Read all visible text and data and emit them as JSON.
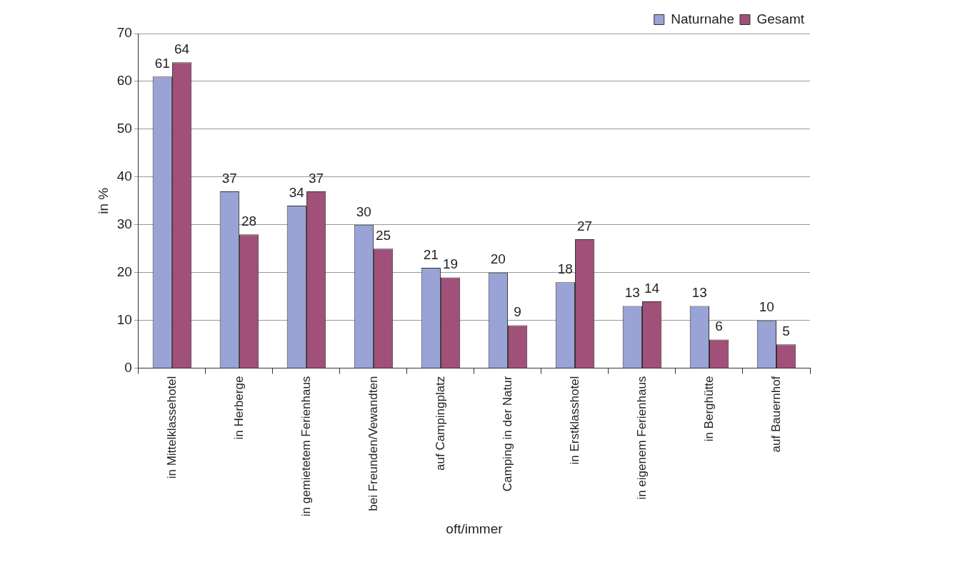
{
  "chart_data": {
    "type": "bar",
    "xlabel": "oft/immer",
    "ylabel": "in %",
    "categories": [
      "in Mittelklassehotel",
      "in Herberge",
      "in gemietetem Ferienhaus",
      "bei Freunden/Vewandten",
      "auf Campingplatz",
      "Camping in der Natur",
      "in Erstklasshotel",
      "in eigenem Ferienhaus",
      "in Berghütte",
      "auf Bauernhof"
    ],
    "series": [
      {
        "name": "Naturnahe",
        "color": "#99a3d5",
        "values": [
          61,
          37,
          34,
          30,
          21,
          20,
          18,
          13,
          13,
          10
        ]
      },
      {
        "name": "Gesamt",
        "color": "#a1507a",
        "values": [
          64,
          28,
          37,
          25,
          19,
          9,
          27,
          14,
          6,
          5
        ]
      }
    ],
    "ylim": [
      0,
      70
    ],
    "yticks": [
      0,
      10,
      20,
      30,
      40,
      50,
      60,
      70
    ],
    "grid": "y",
    "legend": "top right",
    "data_labels": true
  }
}
